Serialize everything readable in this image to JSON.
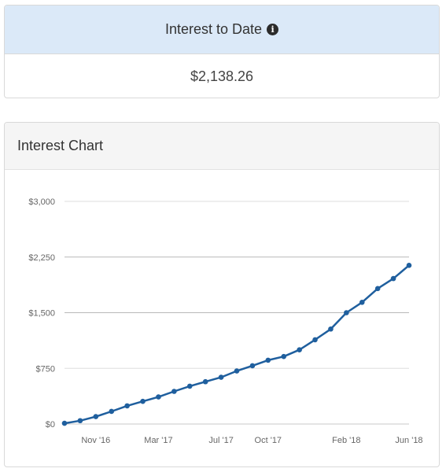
{
  "interest_to_date": {
    "title": "Interest to Date",
    "info_icon": "info-circle-icon",
    "value": "$2,138.26"
  },
  "interest_chart": {
    "title": "Interest Chart"
  },
  "colors": {
    "header_bg": "#dbe9f8",
    "line": "#1f5f9e",
    "grid": "#c8c8c8"
  },
  "chart_data": {
    "type": "line",
    "ylim": [
      0,
      3000
    ],
    "y_ticks": [
      0,
      750,
      1500,
      2250,
      3000
    ],
    "y_tick_labels": [
      "$0",
      "$750",
      "$1,500",
      "$2,250",
      "$3,000"
    ],
    "x_ticks": [
      2,
      6,
      10,
      13,
      18,
      22
    ],
    "x_tick_labels": [
      "Nov '16",
      "Mar '17",
      "Jul '17",
      "Oct '17",
      "Feb '18",
      "Jun '18"
    ],
    "series": [
      {
        "x": [
          0,
          1,
          2,
          3,
          4,
          5,
          6,
          7,
          8,
          9,
          10,
          11,
          12,
          13,
          14,
          15,
          16,
          17,
          18,
          19,
          20,
          21,
          22
        ],
        "values": [
          10,
          45,
          100,
          170,
          245,
          305,
          365,
          440,
          510,
          570,
          630,
          715,
          785,
          860,
          910,
          1000,
          1135,
          1280,
          1500,
          1640,
          1825,
          1960,
          2138
        ]
      }
    ]
  }
}
